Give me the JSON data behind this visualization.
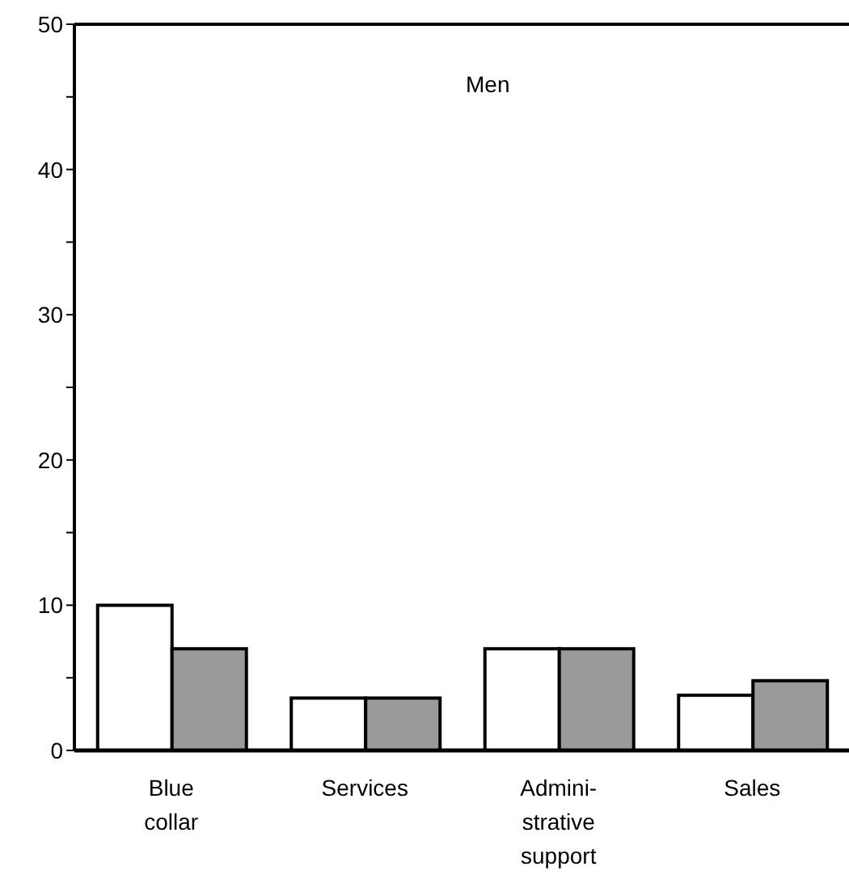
{
  "chart_data": {
    "type": "bar",
    "title": "Men",
    "categories": [
      "Blue collar",
      "Services",
      "Admini-strative support",
      "Sales"
    ],
    "series": [
      {
        "color": "#ffffff",
        "values": [
          10,
          3.6,
          7,
          3.8
        ]
      },
      {
        "color": "#9a9a9a",
        "values": [
          7,
          3.6,
          7,
          4.8
        ]
      }
    ],
    "ylim": [
      0,
      50
    ],
    "yticks": [
      0,
      {
        "value": 5,
        "label": null
      },
      10,
      {
        "value": 15,
        "label": null
      },
      20,
      {
        "value": 25,
        "label": null
      },
      30,
      {
        "value": 35,
        "label": null
      },
      40,
      {
        "value": 45,
        "label": null
      },
      50
    ]
  }
}
